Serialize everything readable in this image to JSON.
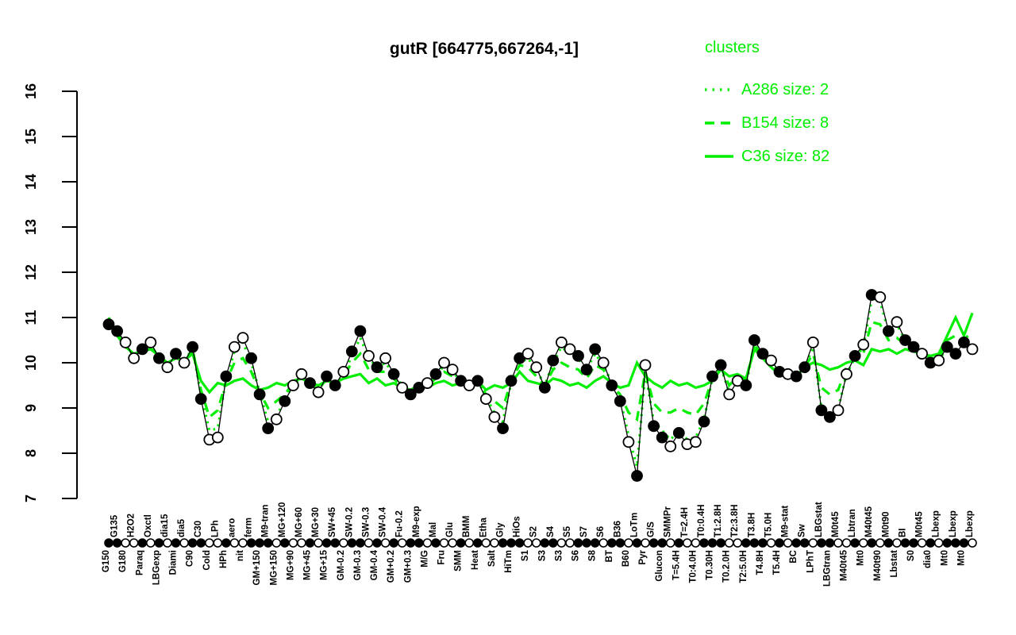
{
  "title": "gutR [664775,667264,-1]",
  "legend": {
    "title": "clusters",
    "entries": [
      {
        "label": "A286 size: 2",
        "style": "dotted"
      },
      {
        "label": "B154 size: 8",
        "style": "dashed"
      },
      {
        "label": "C36 size: 82",
        "style": "solid"
      }
    ]
  },
  "colors": {
    "cluster_green": "#00ee00",
    "point_black": "#000000",
    "background": "#ffffff"
  },
  "chart_data": {
    "type": "line",
    "title": "gutR [664775,667264,-1]",
    "xlabel": "",
    "ylabel": "",
    "ylim": [
      7,
      16
    ],
    "yticks": [
      7,
      8,
      9,
      10,
      11,
      12,
      13,
      14,
      15,
      16
    ],
    "grid": false,
    "legend_position": "top-right",
    "categories": [
      "G150",
      "G135",
      "G180",
      "H2O2",
      "Paraq",
      "Oxctl",
      "LBGexp",
      "dia15",
      "Diami",
      "dia5",
      "C90",
      "C30",
      "Cold",
      "LPh",
      "HPh",
      "aero",
      "nit",
      "ferm",
      "GM+150",
      "M9-tran",
      "MG+150",
      "MG+120",
      "MG+90",
      "MG+60",
      "MG+45",
      "MG+30",
      "MG+15",
      "SW+45",
      "GM-0.2",
      "SW-0.2",
      "GM-0.3",
      "SW-0.3",
      "GM-0.4",
      "SW-0.4",
      "GM+0.2",
      "Fu-0.2",
      "GM+0.3",
      "M9-exp",
      "M/G",
      "Mal",
      "Fru",
      "Glu",
      "SMM",
      "BMM",
      "Heat",
      "Etha",
      "Salt",
      "Gly",
      "HiTm",
      "HiOs",
      "S1",
      "S2",
      "S3",
      "S4",
      "S3",
      "S5",
      "S6",
      "S7",
      "S8",
      "S6",
      "BT",
      "B36",
      "B60",
      "LoTm",
      "Pyr",
      "G/S",
      "Glucon",
      "SMMPr",
      "T=5.4H",
      "T=2.4H",
      "T0:4.0H",
      "T0:0.4H",
      "T0.30H",
      "T1:2.8H",
      "T0.2.0H",
      "T2:3.8H",
      "T2:5.0H",
      "T3.8H",
      "T4.8H",
      "T5.0H",
      "T5.4H",
      "M9-stat",
      "BC",
      "Sw",
      "LPhT",
      "LBGstat",
      "LBGtran",
      "M0t45",
      "M40t45",
      "Lbtran",
      "Mt0",
      "M40t45",
      "M40t90",
      "M0t90",
      "Lbstat",
      "BI",
      "S0",
      "M0t45",
      "dia0",
      "Lbexp",
      "Mt0",
      "Lbexp",
      "Mt0",
      "Lbexp"
    ],
    "series": [
      {
        "name": "gene expression profile",
        "kind": "points",
        "values": [
          10.85,
          10.7,
          10.45,
          10.1,
          10.3,
          10.45,
          10.1,
          9.9,
          10.2,
          10.0,
          10.35,
          9.2,
          8.3,
          8.35,
          9.7,
          10.35,
          10.55,
          10.1,
          9.3,
          8.55,
          8.75,
          9.15,
          9.5,
          9.75,
          9.55,
          9.35,
          9.7,
          9.5,
          9.8,
          10.25,
          10.7,
          10.15,
          9.9,
          10.1,
          9.75,
          9.45,
          9.3,
          9.45,
          9.55,
          9.75,
          10.0,
          9.85,
          9.6,
          9.5,
          9.6,
          9.2,
          8.8,
          8.55,
          9.6,
          10.1,
          10.2,
          9.9,
          9.45,
          10.05,
          10.45,
          10.3,
          10.15,
          9.85,
          10.3,
          10.0,
          9.5,
          9.15,
          8.25,
          7.5,
          9.95,
          8.6,
          8.35,
          8.15,
          8.45,
          8.2,
          8.25,
          8.7,
          9.7,
          9.95,
          9.3,
          9.6,
          9.5,
          10.5,
          10.2,
          10.05,
          9.8,
          9.75,
          9.7,
          9.9,
          10.45,
          8.95,
          8.8,
          8.95,
          9.75,
          10.15,
          10.4,
          11.5,
          11.45,
          10.7,
          10.9,
          10.5,
          10.35,
          10.2,
          10.0,
          10.05,
          10.35,
          10.2,
          10.45,
          10.3
        ],
        "filled": [
          1,
          1,
          0,
          0,
          1,
          0,
          1,
          0,
          1,
          0,
          1,
          1,
          0,
          0,
          1,
          0,
          0,
          1,
          1,
          1,
          0,
          1,
          0,
          0,
          1,
          0,
          1,
          1,
          0,
          1,
          1,
          0,
          1,
          0,
          1,
          0,
          1,
          1,
          0,
          1,
          0,
          0,
          1,
          0,
          1,
          0,
          0,
          1,
          1,
          1,
          0,
          0,
          1,
          1,
          0,
          0,
          1,
          1,
          1,
          0,
          1,
          1,
          0,
          1,
          0,
          1,
          1,
          0,
          1,
          0,
          0,
          1,
          1,
          1,
          0,
          0,
          1,
          1,
          1,
          0,
          1,
          0,
          1,
          1,
          0,
          1,
          1,
          0,
          0,
          1,
          0,
          1,
          0,
          1,
          0,
          1,
          1,
          0,
          1,
          0,
          1,
          1,
          1,
          0
        ]
      },
      {
        "name": "A286 size: 2",
        "kind": "cluster-line",
        "style": "dotted",
        "values": [
          10.8,
          10.65,
          10.4,
          10.15,
          10.25,
          10.4,
          10.1,
          9.95,
          10.15,
          10.05,
          10.3,
          9.3,
          8.5,
          8.55,
          9.65,
          10.25,
          10.45,
          10.0,
          9.35,
          8.7,
          8.8,
          9.2,
          9.5,
          9.7,
          9.55,
          9.4,
          9.65,
          9.5,
          9.75,
          10.15,
          10.55,
          10.1,
          9.9,
          10.0,
          9.75,
          9.5,
          9.35,
          9.45,
          9.55,
          9.7,
          9.95,
          9.8,
          9.6,
          9.5,
          9.6,
          9.25,
          8.9,
          8.7,
          9.55,
          10.0,
          10.1,
          9.85,
          9.5,
          10.0,
          10.35,
          10.2,
          10.1,
          9.85,
          10.2,
          9.95,
          9.55,
          9.2,
          8.4,
          7.7,
          9.8,
          8.7,
          8.5,
          8.3,
          8.5,
          8.3,
          8.35,
          8.75,
          9.65,
          9.9,
          9.35,
          9.6,
          9.5,
          10.4,
          10.15,
          10.0,
          9.8,
          9.75,
          9.7,
          9.9,
          10.35,
          9.0,
          8.85,
          9.0,
          9.75,
          10.1,
          10.35,
          11.4,
          11.35,
          10.7,
          10.85,
          10.5,
          10.35,
          10.2,
          10.05,
          10.05,
          10.35,
          10.25,
          10.4,
          10.3
        ]
      },
      {
        "name": "B154 size: 8",
        "kind": "cluster-line",
        "style": "dashed",
        "values": [
          10.9,
          10.65,
          10.4,
          10.15,
          10.3,
          10.4,
          10.1,
          9.95,
          10.15,
          10.0,
          10.3,
          9.4,
          8.8,
          8.95,
          9.6,
          10.0,
          10.1,
          9.8,
          9.35,
          9.0,
          9.15,
          9.3,
          9.55,
          9.7,
          9.55,
          9.4,
          9.65,
          9.5,
          9.7,
          10.0,
          10.2,
          9.85,
          9.8,
          9.8,
          9.65,
          9.45,
          9.35,
          9.5,
          9.5,
          9.65,
          9.8,
          9.7,
          9.6,
          9.5,
          9.6,
          9.3,
          9.15,
          9.0,
          9.6,
          9.95,
          9.9,
          9.7,
          9.5,
          9.85,
          10.0,
          9.9,
          9.85,
          9.65,
          9.95,
          9.85,
          9.5,
          9.3,
          8.9,
          8.75,
          9.8,
          9.1,
          8.9,
          8.9,
          9.0,
          8.9,
          8.85,
          9.1,
          9.65,
          9.9,
          9.5,
          9.7,
          9.6,
          10.4,
          10.15,
          10.0,
          9.8,
          9.8,
          9.7,
          9.9,
          10.2,
          9.45,
          9.3,
          9.4,
          9.9,
          10.1,
          10.2,
          10.9,
          10.85,
          10.5,
          10.55,
          10.4,
          10.3,
          10.2,
          10.1,
          10.1,
          10.5,
          10.6,
          10.5,
          10.7
        ]
      },
      {
        "name": "C36 size: 82",
        "kind": "cluster-line",
        "style": "solid",
        "values": [
          11.0,
          10.6,
          10.35,
          10.2,
          10.25,
          10.3,
          10.15,
          10.0,
          10.1,
          10.05,
          10.2,
          9.6,
          9.35,
          9.55,
          9.5,
          9.6,
          9.65,
          9.5,
          9.4,
          9.45,
          9.55,
          9.5,
          9.6,
          9.65,
          9.55,
          9.5,
          9.6,
          9.55,
          9.65,
          9.7,
          9.75,
          9.55,
          9.65,
          9.5,
          9.55,
          9.45,
          9.4,
          9.5,
          9.45,
          9.55,
          9.6,
          9.5,
          9.55,
          9.45,
          9.6,
          9.4,
          9.5,
          9.45,
          9.55,
          9.8,
          9.6,
          9.55,
          9.5,
          9.65,
          9.6,
          9.5,
          9.55,
          9.45,
          9.6,
          9.7,
          9.55,
          9.45,
          9.5,
          10.0,
          9.7,
          9.55,
          9.45,
          9.6,
          9.5,
          9.55,
          9.45,
          9.5,
          9.6,
          9.85,
          9.7,
          9.75,
          9.65,
          10.3,
          10.1,
          9.9,
          9.75,
          9.85,
          9.7,
          9.9,
          10.0,
          9.95,
          9.85,
          9.9,
          10.0,
          10.05,
          9.95,
          10.3,
          10.25,
          10.3,
          10.2,
          10.3,
          10.25,
          10.2,
          10.15,
          10.2,
          10.6,
          11.0,
          10.6,
          11.1
        ]
      }
    ]
  }
}
